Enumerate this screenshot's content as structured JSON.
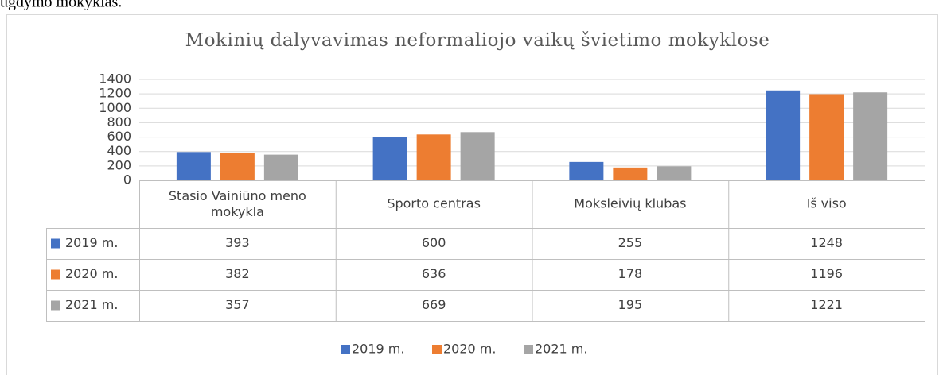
{
  "header_text": "ugdymo mokyklas.",
  "chart_data": {
    "type": "bar",
    "title": "Mokinių dalyvavimas neformaliojo vaikų švietimo mokyklose",
    "categories": [
      "Stasio Vainiūno meno mokykla",
      "Sporto centras",
      "Moksleivių klubas",
      "Iš viso"
    ],
    "series": [
      {
        "name": "2019 m.",
        "color": "#4472c4",
        "values": [
          393,
          600,
          255,
          1248
        ]
      },
      {
        "name": "2020 m.",
        "color": "#ed7d31",
        "values": [
          382,
          636,
          178,
          1196
        ]
      },
      {
        "name": "2021 m.",
        "color": "#a5a5a5",
        "values": [
          357,
          669,
          195,
          1221
        ]
      }
    ],
    "ylim": [
      0,
      1400
    ],
    "yticks": [
      0,
      200,
      400,
      600,
      800,
      1000,
      1200,
      1400
    ],
    "grid": true,
    "legend": "bottom",
    "data_table": true
  }
}
